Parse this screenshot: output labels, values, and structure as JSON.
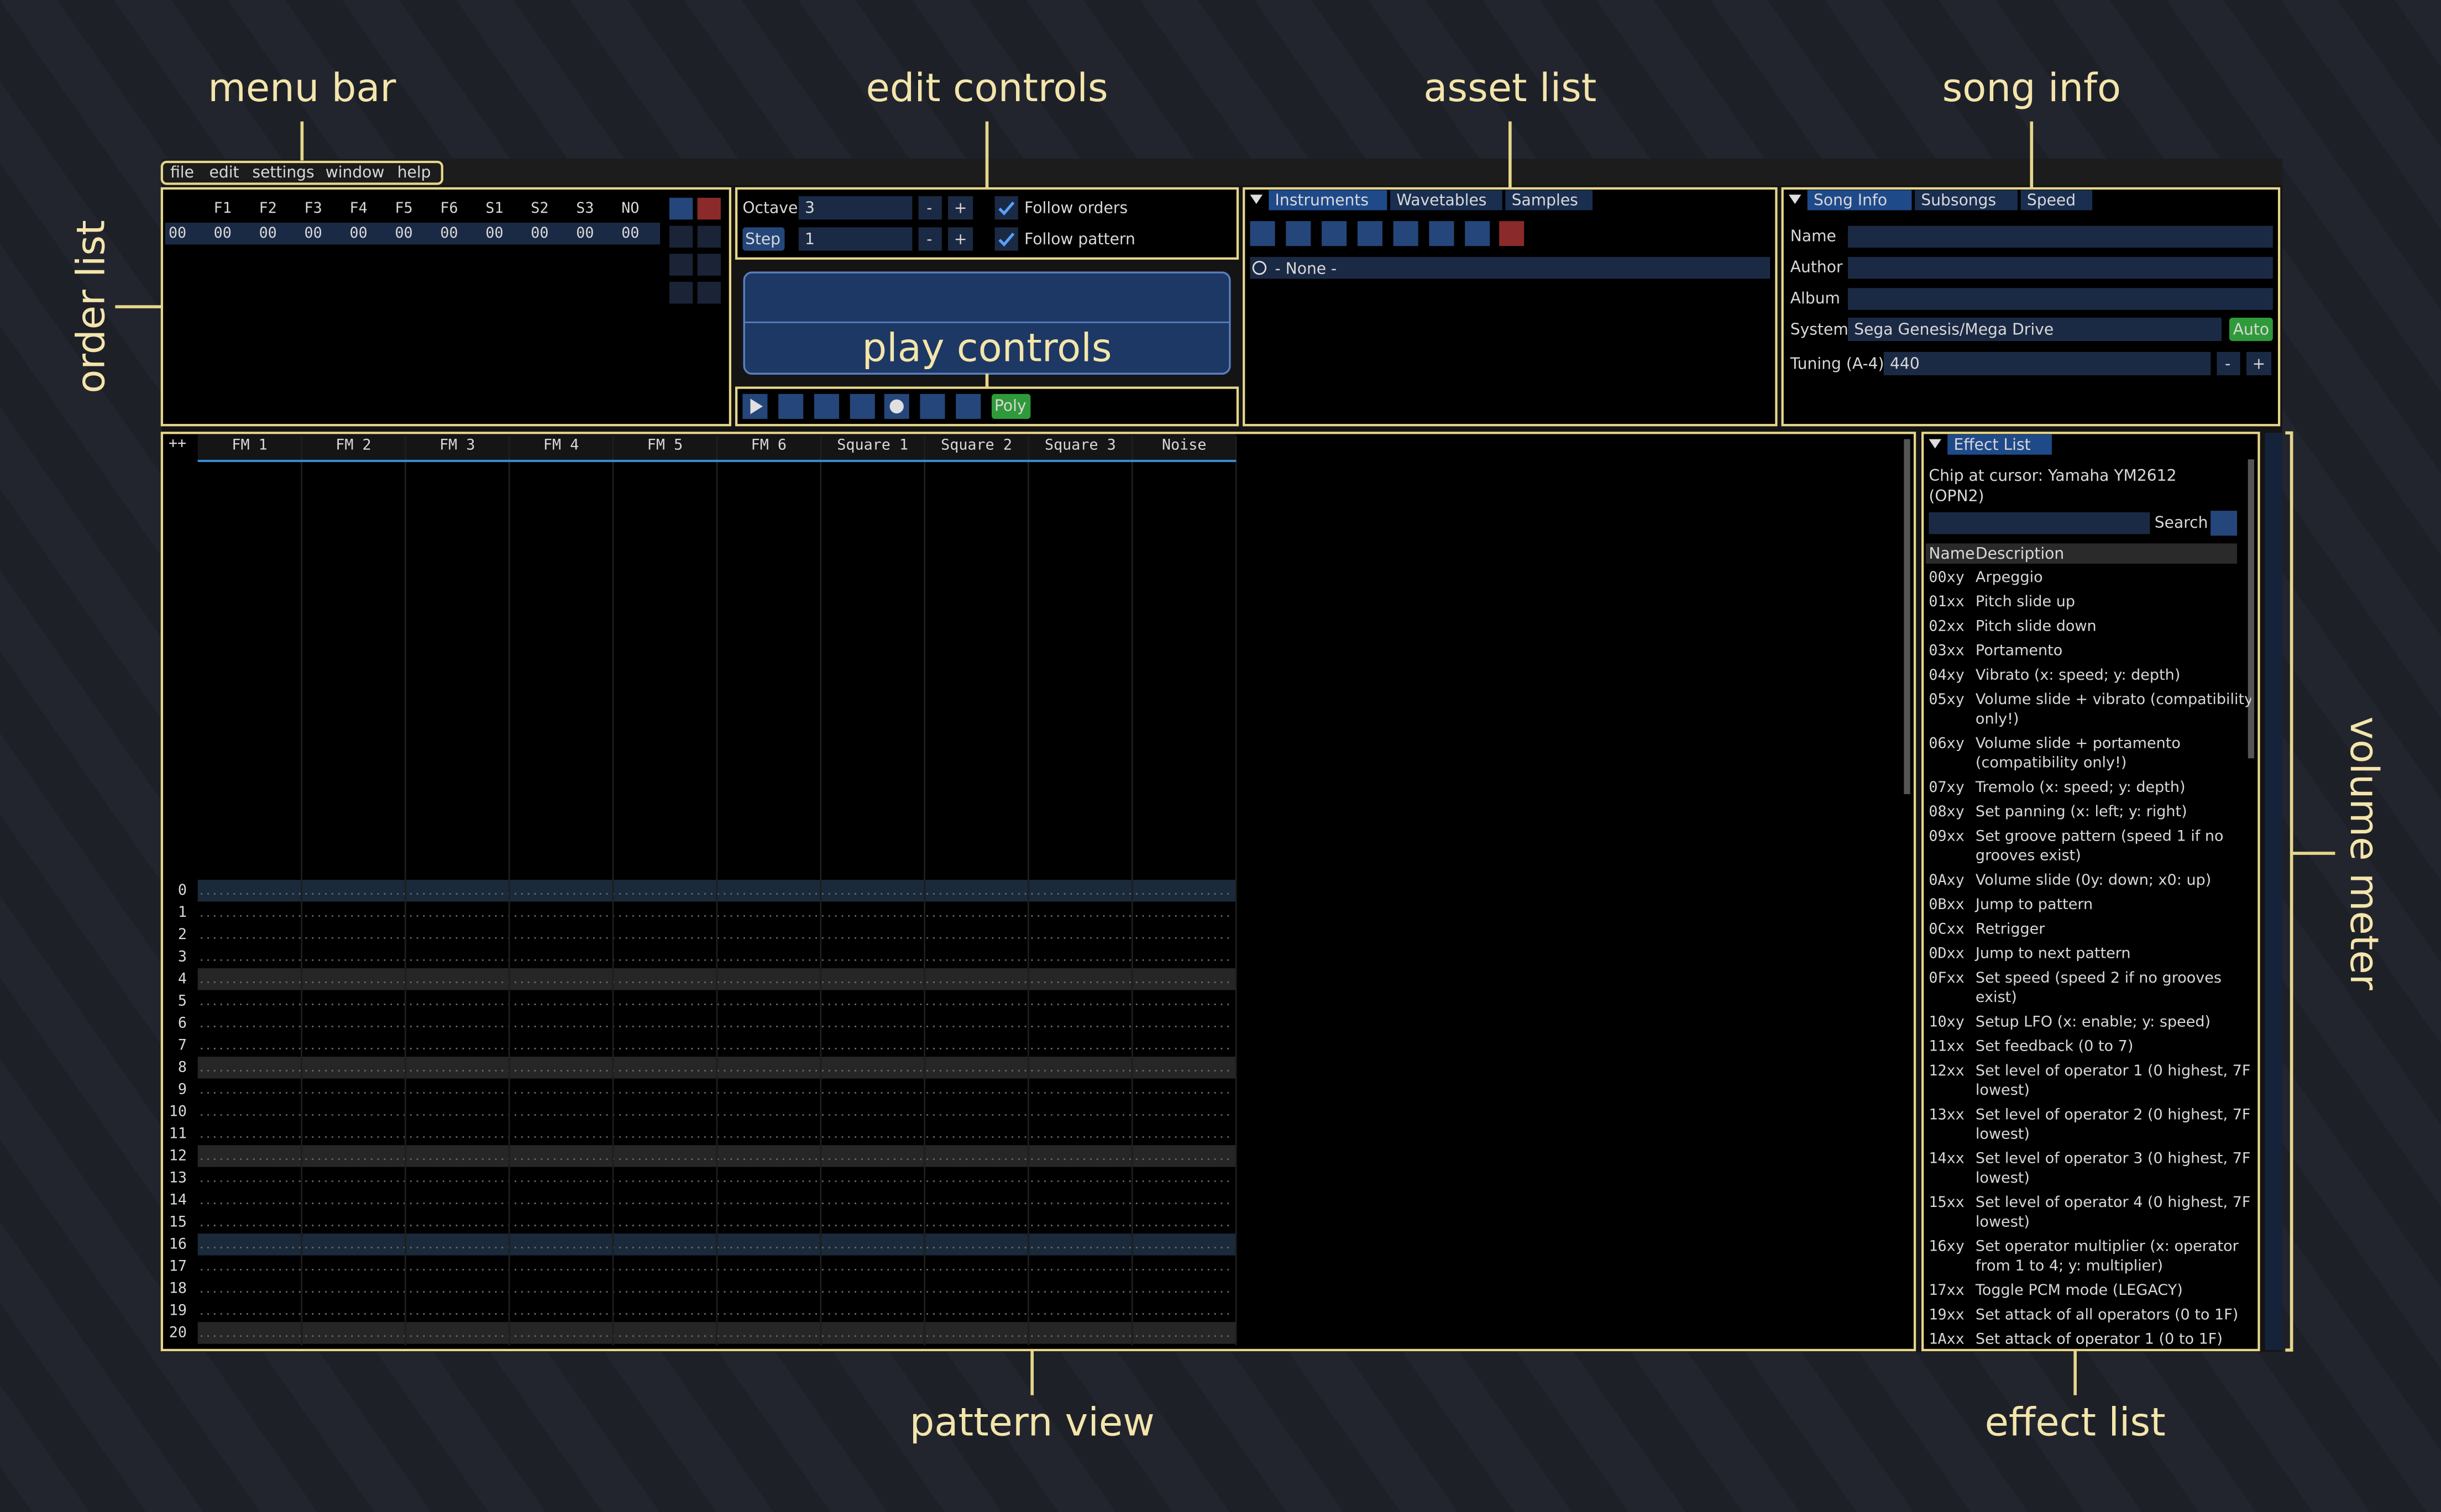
{
  "annotations": {
    "menu_bar": "menu bar",
    "edit_controls": "edit controls",
    "asset_list": "asset list",
    "song_info": "song info",
    "order_list": "order list",
    "play_controls": "play controls",
    "volume_meter": "volume meter",
    "pattern_view": "pattern view",
    "effect_list": "effect list"
  },
  "menu": [
    "file",
    "edit",
    "settings",
    "window",
    "help"
  ],
  "order_list": {
    "columns": [
      "F1",
      "F2",
      "F3",
      "F4",
      "F5",
      "F6",
      "S1",
      "S2",
      "S3",
      "NO"
    ],
    "rows": [
      {
        "index": "00",
        "values": [
          "00",
          "00",
          "00",
          "00",
          "00",
          "00",
          "00",
          "00",
          "00",
          "00"
        ]
      }
    ]
  },
  "edit_controls": {
    "octave_label": "Octave",
    "octave": "3",
    "step_label": "Step",
    "step": "1",
    "minus": "-",
    "plus": "+",
    "follow_orders": "Follow orders",
    "follow_pattern": "Follow pattern"
  },
  "play_controls": {
    "poly": "Poly"
  },
  "asset_list": {
    "tabs": [
      "Instruments",
      "Wavetables",
      "Samples"
    ],
    "items": [
      "- None -"
    ]
  },
  "song_info": {
    "tabs": [
      "Song Info",
      "Subsongs",
      "Speed"
    ],
    "name_label": "Name",
    "author_label": "Author",
    "album_label": "Album",
    "system_label": "System",
    "system": "Sega Genesis/Mega Drive",
    "auto": "Auto",
    "tuning_label": "Tuning (A-4)",
    "tuning": "440",
    "minus": "-",
    "plus": "+"
  },
  "pattern_view": {
    "corner": "++",
    "channels": [
      "FM 1",
      "FM 2",
      "FM 3",
      "FM 4",
      "FM 5",
      "FM 6",
      "Square 1",
      "Square 2",
      "Square 3",
      "Noise"
    ],
    "rows": [
      0,
      1,
      2,
      3,
      4,
      5,
      6,
      7,
      8,
      9,
      10,
      11,
      12,
      13,
      14,
      15,
      16,
      17,
      18,
      19,
      20
    ]
  },
  "effect_list": {
    "title": "Effect List",
    "chip": [
      "Chip at cursor: Yamaha YM2612",
      "(OPN2)"
    ],
    "search": "Search",
    "header": [
      "Name",
      "Description"
    ],
    "effects": [
      {
        "code": "00xy",
        "lines": [
          "Arpeggio"
        ],
        "color": "#7f7fff"
      },
      {
        "code": "01xx",
        "lines": [
          "Pitch slide up"
        ],
        "color": "#e0e070"
      },
      {
        "code": "02xx",
        "lines": [
          "Pitch slide down"
        ],
        "color": "#e0e070"
      },
      {
        "code": "03xx",
        "lines": [
          "Portamento"
        ],
        "color": "#e0e070"
      },
      {
        "code": "04xy",
        "lines": [
          "Vibrato (x: speed; y: depth)"
        ],
        "color": "#e0e070"
      },
      {
        "code": "05xy",
        "lines": [
          "Volume slide + vibrato (compatibility",
          "only!)"
        ],
        "color": "#50e050"
      },
      {
        "code": "06xy",
        "lines": [
          "Volume slide + portamento",
          "(compatibility only!)"
        ],
        "color": "#50e050"
      },
      {
        "code": "07xy",
        "lines": [
          "Tremolo (x: speed; y: depth)"
        ],
        "color": "#50e050"
      },
      {
        "code": "08xy",
        "lines": [
          "Set panning (x: left; y: right)"
        ],
        "color": "#40d0e0"
      },
      {
        "code": "09xx",
        "lines": [
          "Set groove pattern (speed 1 if no",
          "grooves exist)"
        ],
        "color": "#e040e0"
      },
      {
        "code": "0Axy",
        "lines": [
          "Volume slide (0y: down; x0: up)"
        ],
        "color": "#50e050"
      },
      {
        "code": "0Bxx",
        "lines": [
          "Jump to pattern"
        ],
        "color": "#e03030"
      },
      {
        "code": "0Cxx",
        "lines": [
          "Retrigger"
        ],
        "color": "#9040ff"
      },
      {
        "code": "0Dxx",
        "lines": [
          "Jump to next pattern"
        ],
        "color": "#e03030"
      },
      {
        "code": "0Fxx",
        "lines": [
          "Set speed (speed 2 if no grooves",
          "exist)"
        ],
        "color": "#e040e0"
      },
      {
        "code": "10xy",
        "lines": [
          "Setup LFO (x: enable; y: speed)"
        ],
        "color": "#a0f050"
      },
      {
        "code": "11xx",
        "lines": [
          "Set feedback (0 to 7)"
        ],
        "color": "#a0f050"
      },
      {
        "code": "12xx",
        "lines": [
          "Set level of operator 1 (0 highest, 7F",
          "lowest)"
        ],
        "color": "#a0f050"
      },
      {
        "code": "13xx",
        "lines": [
          "Set level of operator 2 (0 highest, 7F",
          "lowest)"
        ],
        "color": "#a0f050"
      },
      {
        "code": "14xx",
        "lines": [
          "Set level of operator 3 (0 highest, 7F",
          "lowest)"
        ],
        "color": "#a0f050"
      },
      {
        "code": "15xx",
        "lines": [
          "Set level of operator 4 (0 highest, 7F",
          "lowest)"
        ],
        "color": "#a0f050"
      },
      {
        "code": "16xy",
        "lines": [
          "Set operator multiplier (x: operator",
          "from 1 to 4; y: multiplier)"
        ],
        "color": "#a0f050"
      },
      {
        "code": "17xx",
        "lines": [
          "Toggle PCM mode (LEGACY)"
        ],
        "color": "#a0f050"
      },
      {
        "code": "19xx",
        "lines": [
          "Set attack of all operators (0 to 1F)"
        ],
        "color": "#a0f050"
      },
      {
        "code": "1Axx",
        "lines": [
          "Set attack of operator 1 (0 to 1F)"
        ],
        "color": "#a0f050"
      }
    ]
  }
}
